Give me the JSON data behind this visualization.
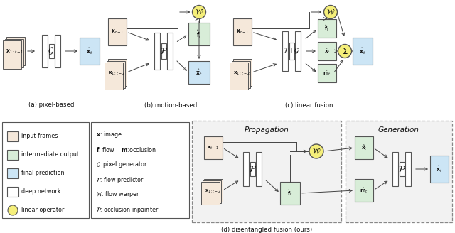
{
  "bg_color": "#ffffff",
  "input_frame_color": "#f5e8da",
  "intermediate_color": "#d8edd8",
  "final_color": "#cce5f5",
  "network_color": "#ffffff",
  "yellow_color": "#f5ef7a",
  "edge_color": "#555555",
  "arrow_color": "#444444",
  "subtitle_a": "(a) pixel-based",
  "subtitle_b": "(b) motion-based",
  "subtitle_c": "(c) linear fusion",
  "subtitle_d": "(d) disentangled fusion (ours)"
}
